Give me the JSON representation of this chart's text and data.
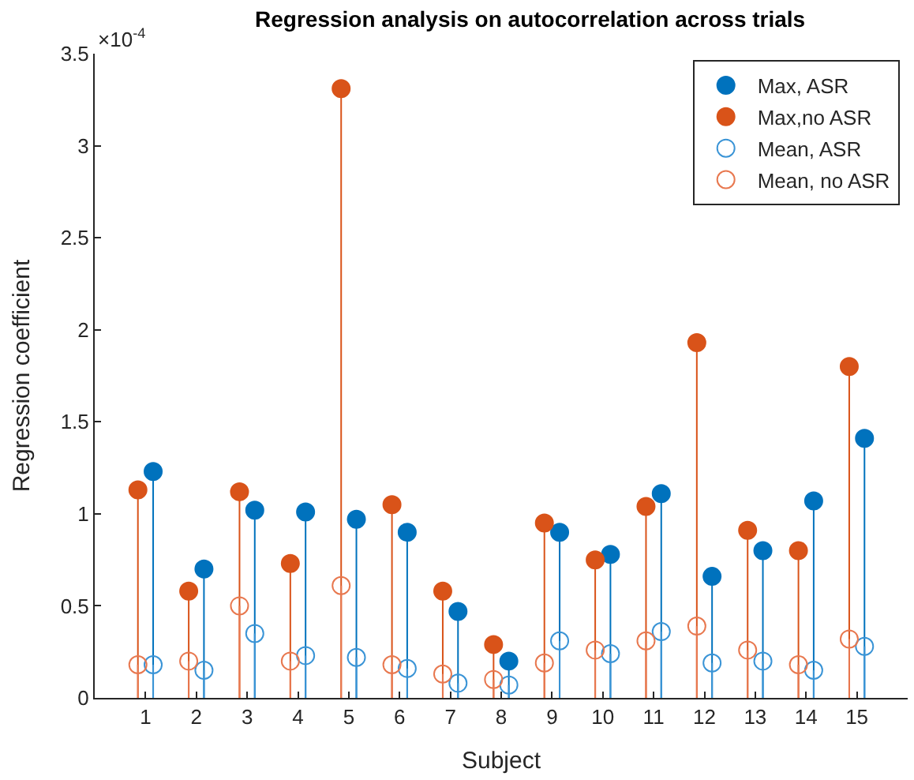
{
  "chart_data": {
    "type": "lollipop",
    "title": "Regression analysis on autocorrelation across trials",
    "xlabel": "Subject",
    "ylabel": "Regression coefficient",
    "annotations": [
      "×10$^{-4}$"
    ],
    "xlim": [
      0,
      16
    ],
    "xticks": [
      1,
      2,
      3,
      4,
      5,
      6,
      7,
      8,
      9,
      10,
      11,
      12,
      13,
      14,
      15
    ],
    "ylim": [
      0,
      3.5
    ],
    "yticks": [
      0,
      0.5,
      1,
      1.5,
      2,
      2.5,
      3,
      3.5
    ],
    "legend": "top right",
    "series": [
      {
        "name": "Max, ASR",
        "color": "#0072bd",
        "marker": "circle",
        "x": [
          1.15,
          2.15,
          3.15,
          4.15,
          5.15,
          6.15,
          7.15,
          8.15,
          9.15,
          10.15,
          11.15,
          12.15,
          13.15,
          14.15,
          15.15
        ],
        "values": [
          1.23,
          0.7,
          1.02,
          1.01,
          0.97,
          0.9,
          0.47,
          0.2,
          0.9,
          0.78,
          1.11,
          0.66,
          0.8,
          1.07,
          1.41
        ]
      },
      {
        "name": "Max,no ASR",
        "color": "#d95319",
        "marker": "circle",
        "x": [
          0.85,
          1.85,
          2.85,
          3.85,
          4.85,
          5.85,
          6.85,
          7.85,
          8.85,
          9.85,
          10.85,
          11.85,
          12.85,
          13.85,
          14.85
        ],
        "values": [
          1.13,
          0.58,
          1.12,
          0.73,
          3.31,
          1.05,
          0.58,
          0.29,
          0.95,
          0.75,
          1.04,
          1.93,
          0.91,
          0.8,
          1.8
        ]
      },
      {
        "name": "Mean, ASR",
        "color": "#3a94d6",
        "marker": "circle-open",
        "x": [
          1.15,
          2.15,
          3.15,
          4.15,
          5.15,
          6.15,
          7.15,
          8.15,
          9.15,
          10.15,
          11.15,
          12.15,
          13.15,
          14.15,
          15.15
        ],
        "values": [
          0.18,
          0.15,
          0.35,
          0.23,
          0.22,
          0.16,
          0.08,
          0.07,
          0.31,
          0.24,
          0.36,
          0.19,
          0.2,
          0.15,
          0.28
        ]
      },
      {
        "name": "Mean, no ASR",
        "color": "#e8784f",
        "marker": "circle-open",
        "x": [
          0.85,
          1.85,
          2.85,
          3.85,
          4.85,
          5.85,
          6.85,
          7.85,
          8.85,
          9.85,
          10.85,
          11.85,
          12.85,
          13.85,
          14.85
        ],
        "values": [
          0.18,
          0.2,
          0.5,
          0.2,
          0.61,
          0.18,
          0.13,
          0.1,
          0.19,
          0.26,
          0.31,
          0.39,
          0.26,
          0.18,
          0.32
        ]
      }
    ]
  }
}
